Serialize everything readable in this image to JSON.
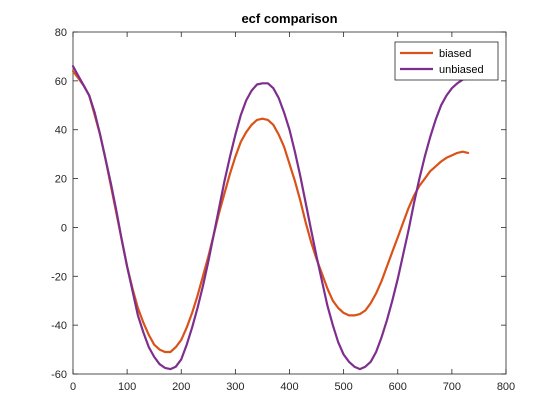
{
  "chart_data": {
    "type": "line",
    "title": "ecf comparison",
    "xlabel": "",
    "ylabel": "",
    "xlim": [
      0,
      800
    ],
    "ylim": [
      -60,
      80
    ],
    "xticks": [
      0,
      100,
      200,
      300,
      400,
      500,
      600,
      700,
      800
    ],
    "yticks": [
      -60,
      -40,
      -20,
      0,
      20,
      40,
      60,
      80
    ],
    "grid": false,
    "legend_position": "top-right",
    "colors": {
      "axes": "#262626",
      "background": "#ffffff"
    },
    "series": [
      {
        "name": "biased",
        "color": "#D95319",
        "x": [
          0,
          10,
          20,
          30,
          40,
          50,
          60,
          70,
          80,
          90,
          100,
          110,
          120,
          130,
          140,
          150,
          160,
          170,
          180,
          190,
          200,
          210,
          220,
          230,
          240,
          250,
          260,
          270,
          280,
          290,
          300,
          310,
          320,
          330,
          340,
          350,
          360,
          370,
          380,
          390,
          400,
          410,
          420,
          430,
          440,
          450,
          460,
          470,
          480,
          490,
          500,
          510,
          520,
          530,
          540,
          550,
          560,
          570,
          580,
          590,
          600,
          610,
          620,
          630,
          640,
          650,
          660,
          670,
          680,
          690,
          700,
          710,
          720,
          730
        ],
        "y": [
          64,
          61,
          58,
          54,
          46,
          38,
          28,
          17,
          6,
          -5,
          -16,
          -25,
          -33,
          -39,
          -44,
          -48,
          -50,
          -51,
          -51,
          -49,
          -46,
          -41,
          -35,
          -28,
          -20,
          -12,
          -3,
          6,
          14,
          22,
          29,
          35,
          39,
          42,
          44,
          44.5,
          44,
          42,
          38,
          33,
          26,
          19,
          11,
          2,
          -6,
          -13,
          -19,
          -25,
          -30,
          -33,
          -35,
          -36,
          -36,
          -35.5,
          -34,
          -31,
          -27,
          -22,
          -16,
          -10,
          -4,
          2,
          8,
          13,
          17,
          20,
          23,
          25,
          27,
          28.5,
          29.5,
          30.5,
          31,
          30.5
        ]
      },
      {
        "name": "unbiased",
        "color": "#7E2F8E",
        "x": [
          0,
          10,
          20,
          30,
          40,
          50,
          60,
          70,
          80,
          90,
          100,
          110,
          120,
          130,
          140,
          150,
          160,
          170,
          180,
          190,
          200,
          210,
          220,
          230,
          240,
          250,
          260,
          270,
          280,
          290,
          300,
          310,
          320,
          330,
          340,
          350,
          360,
          370,
          380,
          390,
          400,
          410,
          420,
          430,
          440,
          450,
          460,
          470,
          480,
          490,
          500,
          510,
          520,
          530,
          540,
          550,
          560,
          570,
          580,
          590,
          600,
          610,
          620,
          630,
          640,
          650,
          660,
          670,
          680,
          690,
          700,
          710,
          720,
          730
        ],
        "y": [
          66,
          62,
          58,
          54,
          47,
          38,
          28,
          18,
          7,
          -5,
          -16,
          -26,
          -36,
          -43,
          -49,
          -53,
          -56,
          -57.5,
          -58,
          -57,
          -54,
          -48,
          -41,
          -33,
          -24,
          -14,
          -3,
          8,
          19,
          29,
          38,
          46,
          52,
          56,
          58.5,
          59,
          59,
          57,
          53,
          47,
          40,
          31,
          21,
          10,
          -1,
          -12,
          -22,
          -32,
          -40,
          -47,
          -52,
          -55,
          -57,
          -58,
          -57,
          -55,
          -51,
          -45,
          -38,
          -30,
          -21,
          -11,
          -1,
          10,
          20,
          29,
          37,
          44,
          50,
          54,
          57,
          59,
          60.5,
          61
        ]
      }
    ]
  }
}
